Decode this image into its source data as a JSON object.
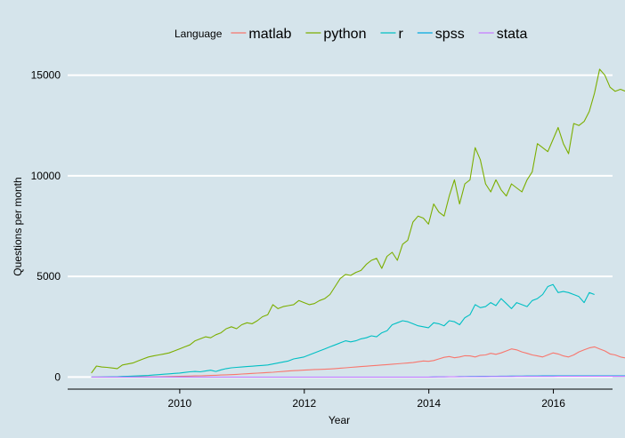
{
  "chart_data": {
    "type": "line",
    "xlabel": "Year",
    "ylabel": "Questions per month",
    "xlim": [
      2008.2,
      2016.95
    ],
    "ylim": [
      -600,
      16000
    ],
    "x_ticks": [
      2010,
      2012,
      2014,
      2016
    ],
    "y_ticks": [
      0,
      5000,
      10000,
      15000
    ],
    "grid": "horizontal major, white",
    "legend": {
      "title": "Language",
      "position": "top"
    },
    "x_start": 2008.58,
    "x_step": 0.0833,
    "series": [
      {
        "name": "matlab",
        "color": "#f8766d",
        "values": [
          0,
          1,
          1,
          2,
          3,
          4,
          5,
          6,
          8,
          10,
          12,
          15,
          18,
          20,
          24,
          28,
          32,
          38,
          45,
          50,
          56,
          62,
          70,
          80,
          90,
          100,
          110,
          120,
          135,
          150,
          165,
          180,
          195,
          210,
          225,
          240,
          260,
          280,
          300,
          320,
          330,
          345,
          360,
          375,
          380,
          390,
          400,
          420,
          440,
          460,
          480,
          500,
          520,
          540,
          560,
          580,
          600,
          620,
          640,
          660,
          680,
          700,
          720,
          760,
          800,
          780,
          820,
          900,
          980,
          1020,
          960,
          1000,
          1060,
          1050,
          1000,
          1080,
          1100,
          1180,
          1130,
          1200,
          1300,
          1400,
          1350,
          1250,
          1180,
          1100,
          1050,
          1000,
          1100,
          1200,
          1150,
          1050,
          1000,
          1100,
          1250,
          1350,
          1450,
          1500,
          1400,
          1300,
          1150,
          1100,
          1000,
          950,
          1050,
          1100,
          1200,
          1100,
          1050,
          1150,
          1250,
          1300,
          1400,
          1350,
          1250,
          1150,
          1050,
          1000,
          1050,
          1100,
          1000,
          1100,
          1050,
          950
        ]
      },
      {
        "name": "python",
        "color": "#7cae00",
        "values": [
          200,
          550,
          500,
          480,
          450,
          420,
          600,
          650,
          700,
          800,
          900,
          1000,
          1050,
          1100,
          1150,
          1200,
          1300,
          1400,
          1500,
          1600,
          1800,
          1900,
          2000,
          1950,
          2100,
          2200,
          2400,
          2500,
          2400,
          2600,
          2700,
          2650,
          2800,
          3000,
          3100,
          3600,
          3400,
          3500,
          3550,
          3600,
          3800,
          3700,
          3600,
          3650,
          3800,
          3900,
          4100,
          4500,
          4900,
          5100,
          5050,
          5200,
          5300,
          5600,
          5800,
          5900,
          5400,
          6000,
          6200,
          5800,
          6600,
          6800,
          7700,
          8000,
          7900,
          7600,
          8600,
          8200,
          8000,
          9000,
          9800,
          8600,
          9600,
          9800,
          11400,
          10800,
          9600,
          9200,
          9800,
          9300,
          9000,
          9600,
          9400,
          9200,
          9800,
          10200,
          11600,
          11400,
          11200,
          11800,
          12400,
          11600,
          11100,
          12600,
          12500,
          12700,
          13200,
          14100,
          15300,
          15000,
          14400,
          14200,
          14300,
          14200,
          13700,
          15000,
          15200
        ]
      },
      {
        "name": "r",
        "color": "#00bfc4",
        "values": [
          0,
          2,
          5,
          10,
          15,
          20,
          30,
          40,
          50,
          60,
          70,
          80,
          100,
          120,
          140,
          160,
          180,
          200,
          230,
          260,
          280,
          260,
          300,
          340,
          280,
          360,
          420,
          460,
          480,
          500,
          520,
          540,
          560,
          580,
          600,
          650,
          700,
          750,
          800,
          900,
          950,
          1000,
          1100,
          1200,
          1300,
          1400,
          1500,
          1600,
          1700,
          1800,
          1750,
          1800,
          1900,
          1950,
          2050,
          2000,
          2200,
          2300,
          2600,
          2700,
          2800,
          2750,
          2650,
          2550,
          2500,
          2450,
          2700,
          2650,
          2550,
          2800,
          2750,
          2600,
          2950,
          3100,
          3600,
          3450,
          3500,
          3700,
          3550,
          3900,
          3650,
          3400,
          3700,
          3600,
          3500,
          3800,
          3900,
          4100,
          4500,
          4600,
          4200,
          4250,
          4200,
          4100,
          4000,
          3700,
          4200,
          4100
        ]
      },
      {
        "name": "spss",
        "color": "#00a9e0",
        "values": [
          0,
          0,
          0,
          0,
          0,
          0,
          0,
          0,
          0,
          0,
          0,
          0,
          0,
          0,
          0,
          0,
          0,
          0,
          0,
          0,
          0,
          0,
          0,
          0,
          0,
          0,
          0,
          0,
          0,
          0,
          0,
          0,
          0,
          0,
          0,
          0,
          0,
          0,
          0,
          0,
          0,
          0,
          0,
          0,
          0,
          0,
          0,
          0,
          0,
          0,
          0,
          0,
          0,
          0,
          0,
          0,
          0,
          0,
          0,
          0,
          0,
          0,
          0,
          0,
          0,
          0,
          10,
          15,
          15,
          20,
          20,
          25,
          25,
          30,
          30,
          35,
          35,
          40,
          40,
          45,
          45,
          50,
          50,
          50,
          55,
          55,
          55,
          60,
          60,
          60,
          60,
          60,
          60,
          60,
          60,
          60,
          60,
          60,
          60,
          60,
          60,
          60,
          60,
          60,
          60,
          60,
          60,
          60,
          60
        ]
      },
      {
        "name": "stata",
        "color": "#c77cff",
        "values": [
          0,
          0,
          0,
          0,
          0,
          0,
          0,
          0,
          0,
          0,
          0,
          0,
          0,
          0,
          0,
          0,
          0,
          0,
          0,
          0,
          0,
          0,
          0,
          0,
          0,
          0,
          0,
          0,
          0,
          0,
          0,
          0,
          0,
          0,
          0,
          0,
          0,
          0,
          0,
          0,
          0,
          0,
          0,
          0,
          0,
          0,
          0,
          0,
          0,
          0,
          0,
          0,
          0,
          0,
          0,
          0,
          0,
          0,
          0,
          0,
          0,
          0,
          0,
          0,
          0,
          0,
          5,
          8,
          10,
          12,
          15,
          15,
          18,
          20,
          20,
          22,
          22,
          25,
          25,
          25,
          28,
          28,
          30,
          30,
          30,
          30,
          30,
          32,
          32,
          32,
          35,
          35,
          35,
          35,
          35,
          35,
          35,
          35,
          35,
          35,
          35,
          35,
          35,
          35,
          35,
          35,
          35,
          35
        ]
      }
    ]
  }
}
